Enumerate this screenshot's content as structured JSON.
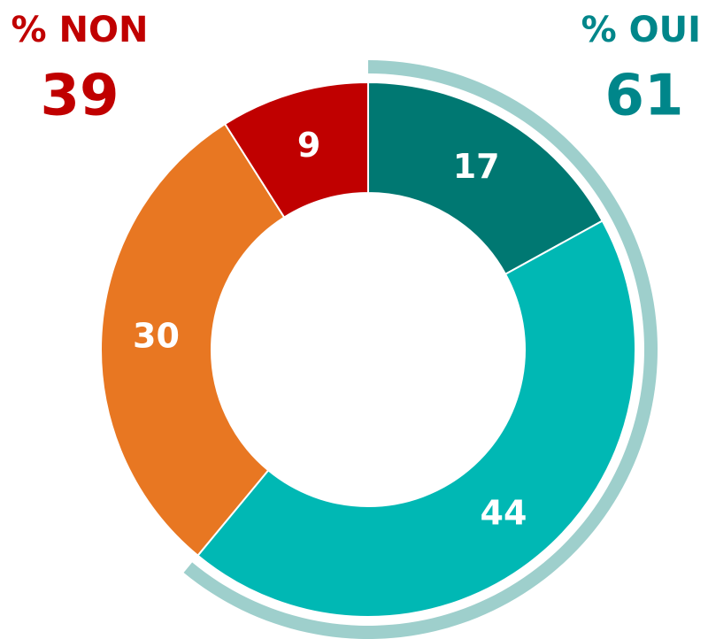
{
  "chart_data": {
    "type": "donut",
    "values": [
      17,
      44,
      30,
      9
    ],
    "colors": [
      "#007872",
      "#00b8b4",
      "#e87722",
      "#c00000"
    ],
    "groups": [
      {
        "label": "% OUI",
        "value": 61,
        "color": "#00868a",
        "ring_color": "#9ecfcc"
      },
      {
        "label": "% NON",
        "value": 39,
        "color": "#c00000"
      }
    ]
  }
}
